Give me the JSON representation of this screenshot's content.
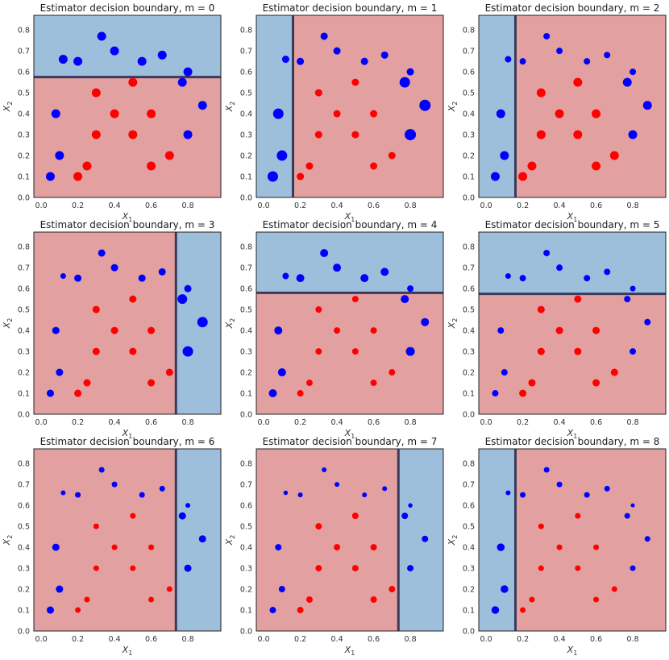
{
  "colors": {
    "blue_region": "#9dbfdb",
    "red_region": "#e3a0a0",
    "blue_point": "#0000ff",
    "red_point": "#ff0000",
    "boundary": "#3a3a5c",
    "frame": "#222222"
  },
  "chart_data": [
    {
      "type": "scatter",
      "title": "Estimator decision boundary, m = 0",
      "xlabel": "X_1",
      "ylabel": "X_2",
      "xlim": [
        -0.04,
        0.98
      ],
      "ylim": [
        0,
        0.87
      ],
      "xticks": [
        0.0,
        0.2,
        0.4,
        0.6,
        0.8
      ],
      "yticks": [
        0.0,
        0.1,
        0.2,
        0.3,
        0.4,
        0.5,
        0.6,
        0.7,
        0.8
      ],
      "split": {
        "axis": "y",
        "threshold": 0.575,
        "low_side": "red",
        "high_side": "blue"
      },
      "blue_points": [
        [
          0.12,
          0.66,
          8
        ],
        [
          0.2,
          0.65,
          8
        ],
        [
          0.33,
          0.77,
          8
        ],
        [
          0.4,
          0.7,
          8
        ],
        [
          0.55,
          0.65,
          8
        ],
        [
          0.66,
          0.68,
          8
        ],
        [
          0.8,
          0.6,
          8
        ],
        [
          0.77,
          0.55,
          8
        ],
        [
          0.88,
          0.44,
          8
        ],
        [
          0.08,
          0.4,
          8
        ],
        [
          0.8,
          0.3,
          8
        ],
        [
          0.1,
          0.2,
          8
        ],
        [
          0.05,
          0.1,
          8
        ]
      ],
      "red_points": [
        [
          0.5,
          0.55,
          8
        ],
        [
          0.3,
          0.5,
          8
        ],
        [
          0.4,
          0.4,
          8
        ],
        [
          0.6,
          0.4,
          8
        ],
        [
          0.3,
          0.3,
          8
        ],
        [
          0.5,
          0.3,
          8
        ],
        [
          0.6,
          0.15,
          8
        ],
        [
          0.25,
          0.15,
          8
        ],
        [
          0.7,
          0.2,
          8
        ],
        [
          0.2,
          0.1,
          8
        ]
      ]
    },
    {
      "type": "scatter",
      "title": "Estimator decision boundary, m = 1",
      "xlabel": "X_1",
      "ylabel": "X_2",
      "xlim": [
        -0.04,
        0.98
      ],
      "ylim": [
        0,
        0.87
      ],
      "xticks": [
        0.0,
        0.2,
        0.4,
        0.6,
        0.8
      ],
      "yticks": [
        0.0,
        0.1,
        0.2,
        0.3,
        0.4,
        0.5,
        0.6,
        0.7,
        0.8
      ],
      "split": {
        "axis": "x",
        "threshold": 0.16,
        "low_side": "blue",
        "high_side": "red"
      },
      "blue_points": [
        [
          0.12,
          0.66,
          6
        ],
        [
          0.2,
          0.65,
          6
        ],
        [
          0.33,
          0.77,
          6
        ],
        [
          0.4,
          0.7,
          6
        ],
        [
          0.55,
          0.65,
          6
        ],
        [
          0.66,
          0.68,
          6
        ],
        [
          0.8,
          0.6,
          6
        ],
        [
          0.77,
          0.55,
          10
        ],
        [
          0.88,
          0.44,
          11
        ],
        [
          0.08,
          0.4,
          10
        ],
        [
          0.8,
          0.3,
          11
        ],
        [
          0.1,
          0.2,
          10
        ],
        [
          0.05,
          0.1,
          10
        ]
      ],
      "red_points": [
        [
          0.5,
          0.55,
          6
        ],
        [
          0.3,
          0.5,
          6
        ],
        [
          0.4,
          0.4,
          6
        ],
        [
          0.6,
          0.4,
          6
        ],
        [
          0.3,
          0.3,
          6
        ],
        [
          0.5,
          0.3,
          6
        ],
        [
          0.6,
          0.15,
          6
        ],
        [
          0.25,
          0.15,
          6
        ],
        [
          0.7,
          0.2,
          6
        ],
        [
          0.2,
          0.1,
          6
        ]
      ]
    },
    {
      "type": "scatter",
      "title": "Estimator decision boundary, m = 2",
      "xlabel": "X_1",
      "ylabel": "X_2",
      "xlim": [
        -0.04,
        0.98
      ],
      "ylim": [
        0,
        0.87
      ],
      "xticks": [
        0.0,
        0.2,
        0.4,
        0.6,
        0.8
      ],
      "yticks": [
        0.0,
        0.1,
        0.2,
        0.3,
        0.4,
        0.5,
        0.6,
        0.7,
        0.8
      ],
      "split": {
        "axis": "x",
        "threshold": 0.16,
        "low_side": "blue",
        "high_side": "red"
      },
      "blue_points": [
        [
          0.12,
          0.66,
          5
        ],
        [
          0.2,
          0.65,
          5
        ],
        [
          0.33,
          0.77,
          5
        ],
        [
          0.4,
          0.7,
          5
        ],
        [
          0.55,
          0.65,
          5
        ],
        [
          0.66,
          0.68,
          5
        ],
        [
          0.8,
          0.6,
          5
        ],
        [
          0.77,
          0.55,
          8
        ],
        [
          0.88,
          0.44,
          8
        ],
        [
          0.08,
          0.4,
          8
        ],
        [
          0.8,
          0.3,
          8
        ],
        [
          0.1,
          0.2,
          8
        ],
        [
          0.05,
          0.1,
          8
        ]
      ],
      "red_points": [
        [
          0.5,
          0.55,
          8
        ],
        [
          0.3,
          0.5,
          8
        ],
        [
          0.4,
          0.4,
          8
        ],
        [
          0.6,
          0.4,
          8
        ],
        [
          0.3,
          0.3,
          8
        ],
        [
          0.5,
          0.3,
          8
        ],
        [
          0.6,
          0.15,
          8
        ],
        [
          0.25,
          0.15,
          8
        ],
        [
          0.7,
          0.2,
          8
        ],
        [
          0.2,
          0.1,
          8
        ]
      ]
    },
    {
      "type": "scatter",
      "title": "Estimator decision boundary, m = 3",
      "xlabel": "X_1",
      "ylabel": "X_2",
      "xlim": [
        -0.04,
        0.98
      ],
      "ylim": [
        0,
        0.87
      ],
      "xticks": [
        0.0,
        0.2,
        0.4,
        0.6,
        0.8
      ],
      "yticks": [
        0.0,
        0.1,
        0.2,
        0.3,
        0.4,
        0.5,
        0.6,
        0.7,
        0.8
      ],
      "split": {
        "axis": "x",
        "threshold": 0.735,
        "low_side": "red",
        "high_side": "blue"
      },
      "blue_points": [
        [
          0.12,
          0.66,
          4
        ],
        [
          0.2,
          0.65,
          6
        ],
        [
          0.33,
          0.77,
          6
        ],
        [
          0.4,
          0.7,
          6
        ],
        [
          0.55,
          0.65,
          6
        ],
        [
          0.66,
          0.68,
          6
        ],
        [
          0.8,
          0.6,
          6
        ],
        [
          0.77,
          0.55,
          9
        ],
        [
          0.88,
          0.44,
          10
        ],
        [
          0.08,
          0.4,
          6
        ],
        [
          0.8,
          0.3,
          10
        ],
        [
          0.1,
          0.2,
          6
        ],
        [
          0.05,
          0.1,
          6
        ]
      ],
      "red_points": [
        [
          0.5,
          0.55,
          6
        ],
        [
          0.3,
          0.5,
          6
        ],
        [
          0.4,
          0.4,
          6
        ],
        [
          0.6,
          0.4,
          6
        ],
        [
          0.3,
          0.3,
          6
        ],
        [
          0.5,
          0.3,
          6
        ],
        [
          0.6,
          0.15,
          6
        ],
        [
          0.25,
          0.15,
          6
        ],
        [
          0.7,
          0.2,
          6
        ],
        [
          0.2,
          0.1,
          6
        ]
      ]
    },
    {
      "type": "scatter",
      "title": "Estimator decision boundary, m = 4",
      "xlabel": "X_1",
      "ylabel": "X_2",
      "xlim": [
        -0.04,
        0.98
      ],
      "ylim": [
        0,
        0.87
      ],
      "xticks": [
        0.0,
        0.2,
        0.4,
        0.6,
        0.8
      ],
      "yticks": [
        0.0,
        0.1,
        0.2,
        0.3,
        0.4,
        0.5,
        0.6,
        0.7,
        0.8
      ],
      "split": {
        "axis": "y",
        "threshold": 0.58,
        "low_side": "red",
        "high_side": "blue"
      },
      "blue_points": [
        [
          0.12,
          0.66,
          5
        ],
        [
          0.2,
          0.65,
          7
        ],
        [
          0.33,
          0.77,
          7
        ],
        [
          0.4,
          0.7,
          7
        ],
        [
          0.55,
          0.65,
          7
        ],
        [
          0.66,
          0.68,
          7
        ],
        [
          0.8,
          0.6,
          5
        ],
        [
          0.77,
          0.55,
          7
        ],
        [
          0.88,
          0.44,
          7
        ],
        [
          0.08,
          0.4,
          7
        ],
        [
          0.8,
          0.3,
          8
        ],
        [
          0.1,
          0.2,
          7
        ],
        [
          0.05,
          0.1,
          7
        ]
      ],
      "red_points": [
        [
          0.5,
          0.55,
          5
        ],
        [
          0.3,
          0.5,
          5
        ],
        [
          0.4,
          0.4,
          5
        ],
        [
          0.6,
          0.4,
          5
        ],
        [
          0.3,
          0.3,
          5
        ],
        [
          0.5,
          0.3,
          5
        ],
        [
          0.6,
          0.15,
          5
        ],
        [
          0.25,
          0.15,
          5
        ],
        [
          0.7,
          0.2,
          5
        ],
        [
          0.2,
          0.1,
          5
        ]
      ]
    },
    {
      "type": "scatter",
      "title": "Estimator decision boundary, m = 5",
      "xlabel": "X_1",
      "ylabel": "X_2",
      "xlim": [
        -0.04,
        0.98
      ],
      "ylim": [
        0,
        0.87
      ],
      "xticks": [
        0.0,
        0.2,
        0.4,
        0.6,
        0.8
      ],
      "yticks": [
        0.0,
        0.1,
        0.2,
        0.3,
        0.4,
        0.5,
        0.6,
        0.7,
        0.8
      ],
      "split": {
        "axis": "y",
        "threshold": 0.575,
        "low_side": "red",
        "high_side": "blue"
      },
      "blue_points": [
        [
          0.12,
          0.66,
          4
        ],
        [
          0.2,
          0.65,
          5
        ],
        [
          0.33,
          0.77,
          5
        ],
        [
          0.4,
          0.7,
          5
        ],
        [
          0.55,
          0.65,
          5
        ],
        [
          0.66,
          0.68,
          5
        ],
        [
          0.8,
          0.6,
          4
        ],
        [
          0.77,
          0.55,
          5
        ],
        [
          0.88,
          0.44,
          5
        ],
        [
          0.08,
          0.4,
          5
        ],
        [
          0.8,
          0.3,
          5
        ],
        [
          0.1,
          0.2,
          5
        ],
        [
          0.05,
          0.1,
          5
        ]
      ],
      "red_points": [
        [
          0.5,
          0.55,
          6
        ],
        [
          0.3,
          0.5,
          6
        ],
        [
          0.4,
          0.4,
          6
        ],
        [
          0.6,
          0.4,
          6
        ],
        [
          0.3,
          0.3,
          6
        ],
        [
          0.5,
          0.3,
          6
        ],
        [
          0.6,
          0.15,
          6
        ],
        [
          0.25,
          0.15,
          6
        ],
        [
          0.7,
          0.2,
          6
        ],
        [
          0.2,
          0.1,
          6
        ]
      ]
    },
    {
      "type": "scatter",
      "title": "Estimator decision boundary, m = 6",
      "xlabel": "X_1",
      "ylabel": "X_2",
      "xlim": [
        -0.04,
        0.98
      ],
      "ylim": [
        0,
        0.87
      ],
      "xticks": [
        0.0,
        0.2,
        0.4,
        0.6,
        0.8
      ],
      "yticks": [
        0.0,
        0.1,
        0.2,
        0.3,
        0.4,
        0.5,
        0.6,
        0.7,
        0.8
      ],
      "split": {
        "axis": "x",
        "threshold": 0.735,
        "low_side": "red",
        "high_side": "blue"
      },
      "blue_points": [
        [
          0.12,
          0.66,
          3
        ],
        [
          0.2,
          0.65,
          4
        ],
        [
          0.33,
          0.77,
          4
        ],
        [
          0.4,
          0.7,
          4
        ],
        [
          0.55,
          0.65,
          4
        ],
        [
          0.66,
          0.68,
          4
        ],
        [
          0.8,
          0.6,
          3
        ],
        [
          0.77,
          0.55,
          6
        ],
        [
          0.88,
          0.44,
          6
        ],
        [
          0.08,
          0.4,
          6
        ],
        [
          0.8,
          0.3,
          6
        ],
        [
          0.1,
          0.2,
          6
        ],
        [
          0.05,
          0.1,
          6
        ]
      ],
      "red_points": [
        [
          0.5,
          0.55,
          4
        ],
        [
          0.3,
          0.5,
          4
        ],
        [
          0.4,
          0.4,
          4
        ],
        [
          0.6,
          0.4,
          4
        ],
        [
          0.3,
          0.3,
          4
        ],
        [
          0.5,
          0.3,
          4
        ],
        [
          0.6,
          0.15,
          4
        ],
        [
          0.25,
          0.15,
          4
        ],
        [
          0.7,
          0.2,
          4
        ],
        [
          0.2,
          0.1,
          4
        ]
      ]
    },
    {
      "type": "scatter",
      "title": "Estimator decision boundary, m = 7",
      "xlabel": "X_1",
      "ylabel": "X_2",
      "xlim": [
        -0.04,
        0.98
      ],
      "ylim": [
        0,
        0.87
      ],
      "xticks": [
        0.0,
        0.2,
        0.4,
        0.6,
        0.8
      ],
      "yticks": [
        0.0,
        0.1,
        0.2,
        0.3,
        0.4,
        0.5,
        0.6,
        0.7,
        0.8
      ],
      "split": {
        "axis": "x",
        "threshold": 0.735,
        "low_side": "red",
        "high_side": "blue"
      },
      "blue_points": [
        [
          0.12,
          0.66,
          2.5
        ],
        [
          0.2,
          0.65,
          3
        ],
        [
          0.33,
          0.77,
          3
        ],
        [
          0.4,
          0.7,
          3
        ],
        [
          0.55,
          0.65,
          3
        ],
        [
          0.66,
          0.68,
          3
        ],
        [
          0.8,
          0.6,
          2.5
        ],
        [
          0.77,
          0.55,
          5
        ],
        [
          0.88,
          0.44,
          5
        ],
        [
          0.08,
          0.4,
          5
        ],
        [
          0.8,
          0.3,
          5
        ],
        [
          0.1,
          0.2,
          5
        ],
        [
          0.05,
          0.1,
          5
        ]
      ],
      "red_points": [
        [
          0.5,
          0.55,
          5
        ],
        [
          0.3,
          0.5,
          5
        ],
        [
          0.4,
          0.4,
          5
        ],
        [
          0.6,
          0.4,
          5
        ],
        [
          0.3,
          0.3,
          5
        ],
        [
          0.5,
          0.3,
          5
        ],
        [
          0.6,
          0.15,
          5
        ],
        [
          0.25,
          0.15,
          5
        ],
        [
          0.7,
          0.2,
          5
        ],
        [
          0.2,
          0.1,
          5
        ]
      ]
    },
    {
      "type": "scatter",
      "title": "Estimator decision boundary, m = 8",
      "xlabel": "X_1",
      "ylabel": "X_2",
      "xlim": [
        -0.04,
        0.98
      ],
      "ylim": [
        0,
        0.87
      ],
      "xticks": [
        0.0,
        0.2,
        0.4,
        0.6,
        0.8
      ],
      "yticks": [
        0.0,
        0.1,
        0.2,
        0.3,
        0.4,
        0.5,
        0.6,
        0.7,
        0.8
      ],
      "split": {
        "axis": "x",
        "threshold": 0.16,
        "low_side": "blue",
        "high_side": "red"
      },
      "blue_points": [
        [
          0.12,
          0.66,
          3
        ],
        [
          0.2,
          0.65,
          4
        ],
        [
          0.33,
          0.77,
          4
        ],
        [
          0.4,
          0.7,
          4
        ],
        [
          0.55,
          0.65,
          4
        ],
        [
          0.66,
          0.68,
          4
        ],
        [
          0.8,
          0.6,
          2
        ],
        [
          0.77,
          0.55,
          4
        ],
        [
          0.88,
          0.44,
          4
        ],
        [
          0.08,
          0.4,
          6.5
        ],
        [
          0.8,
          0.3,
          4
        ],
        [
          0.1,
          0.2,
          6.5
        ],
        [
          0.05,
          0.1,
          6.5
        ]
      ],
      "red_points": [
        [
          0.5,
          0.55,
          4
        ],
        [
          0.3,
          0.5,
          4
        ],
        [
          0.4,
          0.4,
          4
        ],
        [
          0.6,
          0.4,
          4
        ],
        [
          0.3,
          0.3,
          4
        ],
        [
          0.5,
          0.3,
          4
        ],
        [
          0.6,
          0.15,
          4
        ],
        [
          0.25,
          0.15,
          4
        ],
        [
          0.7,
          0.2,
          4
        ],
        [
          0.2,
          0.1,
          4
        ]
      ]
    }
  ]
}
